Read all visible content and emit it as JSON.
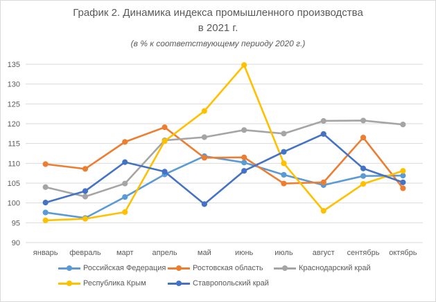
{
  "title_line1": "График 2. Динамика индекса промышленного производства",
  "title_line2": "в 2021 г.",
  "subtitle": "(в % к соответствующему периоду 2020 г.)",
  "chart_data": {
    "type": "line",
    "title": "График 2. Динамика индекса промышленного производства в 2021 г.",
    "subtitle": "(в % к соответствующему периоду 2020 г.)",
    "xlabel": "",
    "ylabel": "",
    "categories": [
      "январь",
      "февраль",
      "март",
      "апрель",
      "май",
      "июнь",
      "июль",
      "август",
      "сентябрь",
      "октябрь"
    ],
    "ylim": [
      90,
      135
    ],
    "yticks": [
      90,
      95,
      100,
      105,
      110,
      115,
      120,
      125,
      130,
      135
    ],
    "grid": "horizontal",
    "legend_position": "bottom",
    "series": [
      {
        "name": "Российская Федерация",
        "color": "#5B9BD5",
        "values": [
          97.6,
          96.2,
          101.5,
          107.2,
          111.8,
          110.2,
          107.1,
          104.5,
          106.8,
          106.9
        ]
      },
      {
        "name": "Ростовская область",
        "color": "#ED7D31",
        "values": [
          109.8,
          108.6,
          115.4,
          119.1,
          111.4,
          111.5,
          104.9,
          105.2,
          116.5,
          103.7
        ]
      },
      {
        "name": "Краснодарский край",
        "color": "#A5A5A5",
        "values": [
          104.0,
          101.6,
          104.9,
          115.8,
          116.6,
          118.4,
          117.5,
          120.7,
          120.8,
          119.8
        ]
      },
      {
        "name": "Республика Крым",
        "color": "#FFC000",
        "values": [
          95.6,
          96.0,
          97.7,
          115.6,
          123.2,
          134.8,
          110.0,
          98.0,
          104.8,
          108.1
        ]
      },
      {
        "name": "Ставропольский край",
        "color": "#4472C4",
        "values": [
          100.1,
          103.0,
          110.3,
          107.9,
          99.7,
          108.1,
          112.9,
          117.4,
          108.7,
          105.2
        ]
      }
    ]
  }
}
